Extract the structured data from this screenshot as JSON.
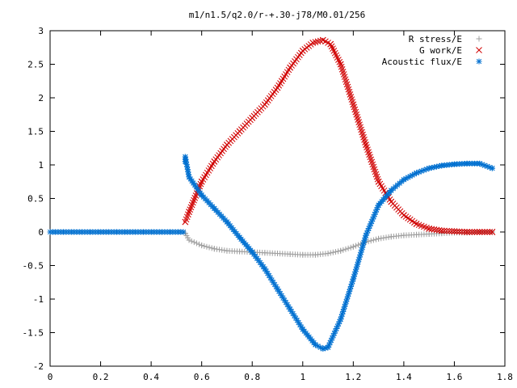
{
  "chart_data": {
    "type": "scatter",
    "title": "m1/n1.5/q2.0/r-+.30-j78/M0.01/256",
    "xlabel": "",
    "ylabel": "",
    "xlim": [
      0,
      1.8
    ],
    "ylim": [
      -2,
      3
    ],
    "grid": false,
    "legend_position": "top-right",
    "xticks": [
      "0",
      "0.2",
      "0.4",
      "0.6",
      "0.8",
      "1",
      "1.2",
      "1.4",
      "1.6",
      "1.8"
    ],
    "yticks": [
      "3",
      "2.5",
      "2",
      "1.5",
      "1",
      "0.5",
      "0",
      "-0.5",
      "-1",
      "-1.5",
      "-2"
    ],
    "series": [
      {
        "name": "R stress/E",
        "marker": "plus",
        "color": "#a0a0a0",
        "x": [
          0.535,
          0.55,
          0.6,
          0.65,
          0.7,
          0.75,
          0.8,
          0.85,
          0.9,
          0.95,
          1.0,
          1.05,
          1.1,
          1.15,
          1.2,
          1.25,
          1.3,
          1.35,
          1.4,
          1.45,
          1.5,
          1.55,
          1.6,
          1.65,
          1.7,
          1.75
        ],
        "y": [
          -0.02,
          -0.12,
          -0.2,
          -0.25,
          -0.28,
          -0.29,
          -0.3,
          -0.31,
          -0.32,
          -0.33,
          -0.34,
          -0.34,
          -0.32,
          -0.28,
          -0.22,
          -0.15,
          -0.1,
          -0.07,
          -0.05,
          -0.04,
          -0.03,
          -0.02,
          -0.01,
          -0.01,
          0.0,
          0.0
        ]
      },
      {
        "name": "G work/E",
        "marker": "cross",
        "color": "#d00000",
        "x": [
          0.535,
          0.55,
          0.6,
          0.65,
          0.7,
          0.75,
          0.8,
          0.85,
          0.9,
          0.95,
          1.0,
          1.04,
          1.08,
          1.11,
          1.15,
          1.2,
          1.25,
          1.3,
          1.35,
          1.4,
          1.45,
          1.5,
          1.55,
          1.6,
          1.65,
          1.7,
          1.75
        ],
        "y": [
          0.15,
          0.3,
          0.75,
          1.05,
          1.3,
          1.5,
          1.7,
          1.9,
          2.15,
          2.45,
          2.7,
          2.82,
          2.86,
          2.8,
          2.5,
          1.9,
          1.3,
          0.75,
          0.45,
          0.25,
          0.12,
          0.05,
          0.02,
          0.01,
          0.0,
          0.0,
          0.0
        ]
      },
      {
        "name": "Acoustic flux/E",
        "marker": "star",
        "color": "#0070d0",
        "x": [
          0.0,
          0.535,
          0.535,
          0.55,
          0.6,
          0.65,
          0.7,
          0.75,
          0.8,
          0.85,
          0.9,
          0.95,
          1.0,
          1.05,
          1.08,
          1.1,
          1.15,
          1.2,
          1.25,
          1.3,
          1.35,
          1.4,
          1.45,
          1.5,
          1.55,
          1.6,
          1.65,
          1.7,
          1.75
        ],
        "y": [
          0.0,
          1.05,
          1.12,
          0.82,
          0.55,
          0.35,
          0.15,
          -0.08,
          -0.3,
          -0.55,
          -0.85,
          -1.15,
          -1.45,
          -1.68,
          -1.74,
          -1.72,
          -1.3,
          -0.7,
          -0.05,
          0.4,
          0.62,
          0.78,
          0.88,
          0.95,
          0.99,
          1.01,
          1.02,
          1.02,
          0.95
        ],
        "flat_segment": {
          "x_start": 0.0,
          "x_end": 0.535,
          "y": 0.0
        }
      }
    ]
  }
}
